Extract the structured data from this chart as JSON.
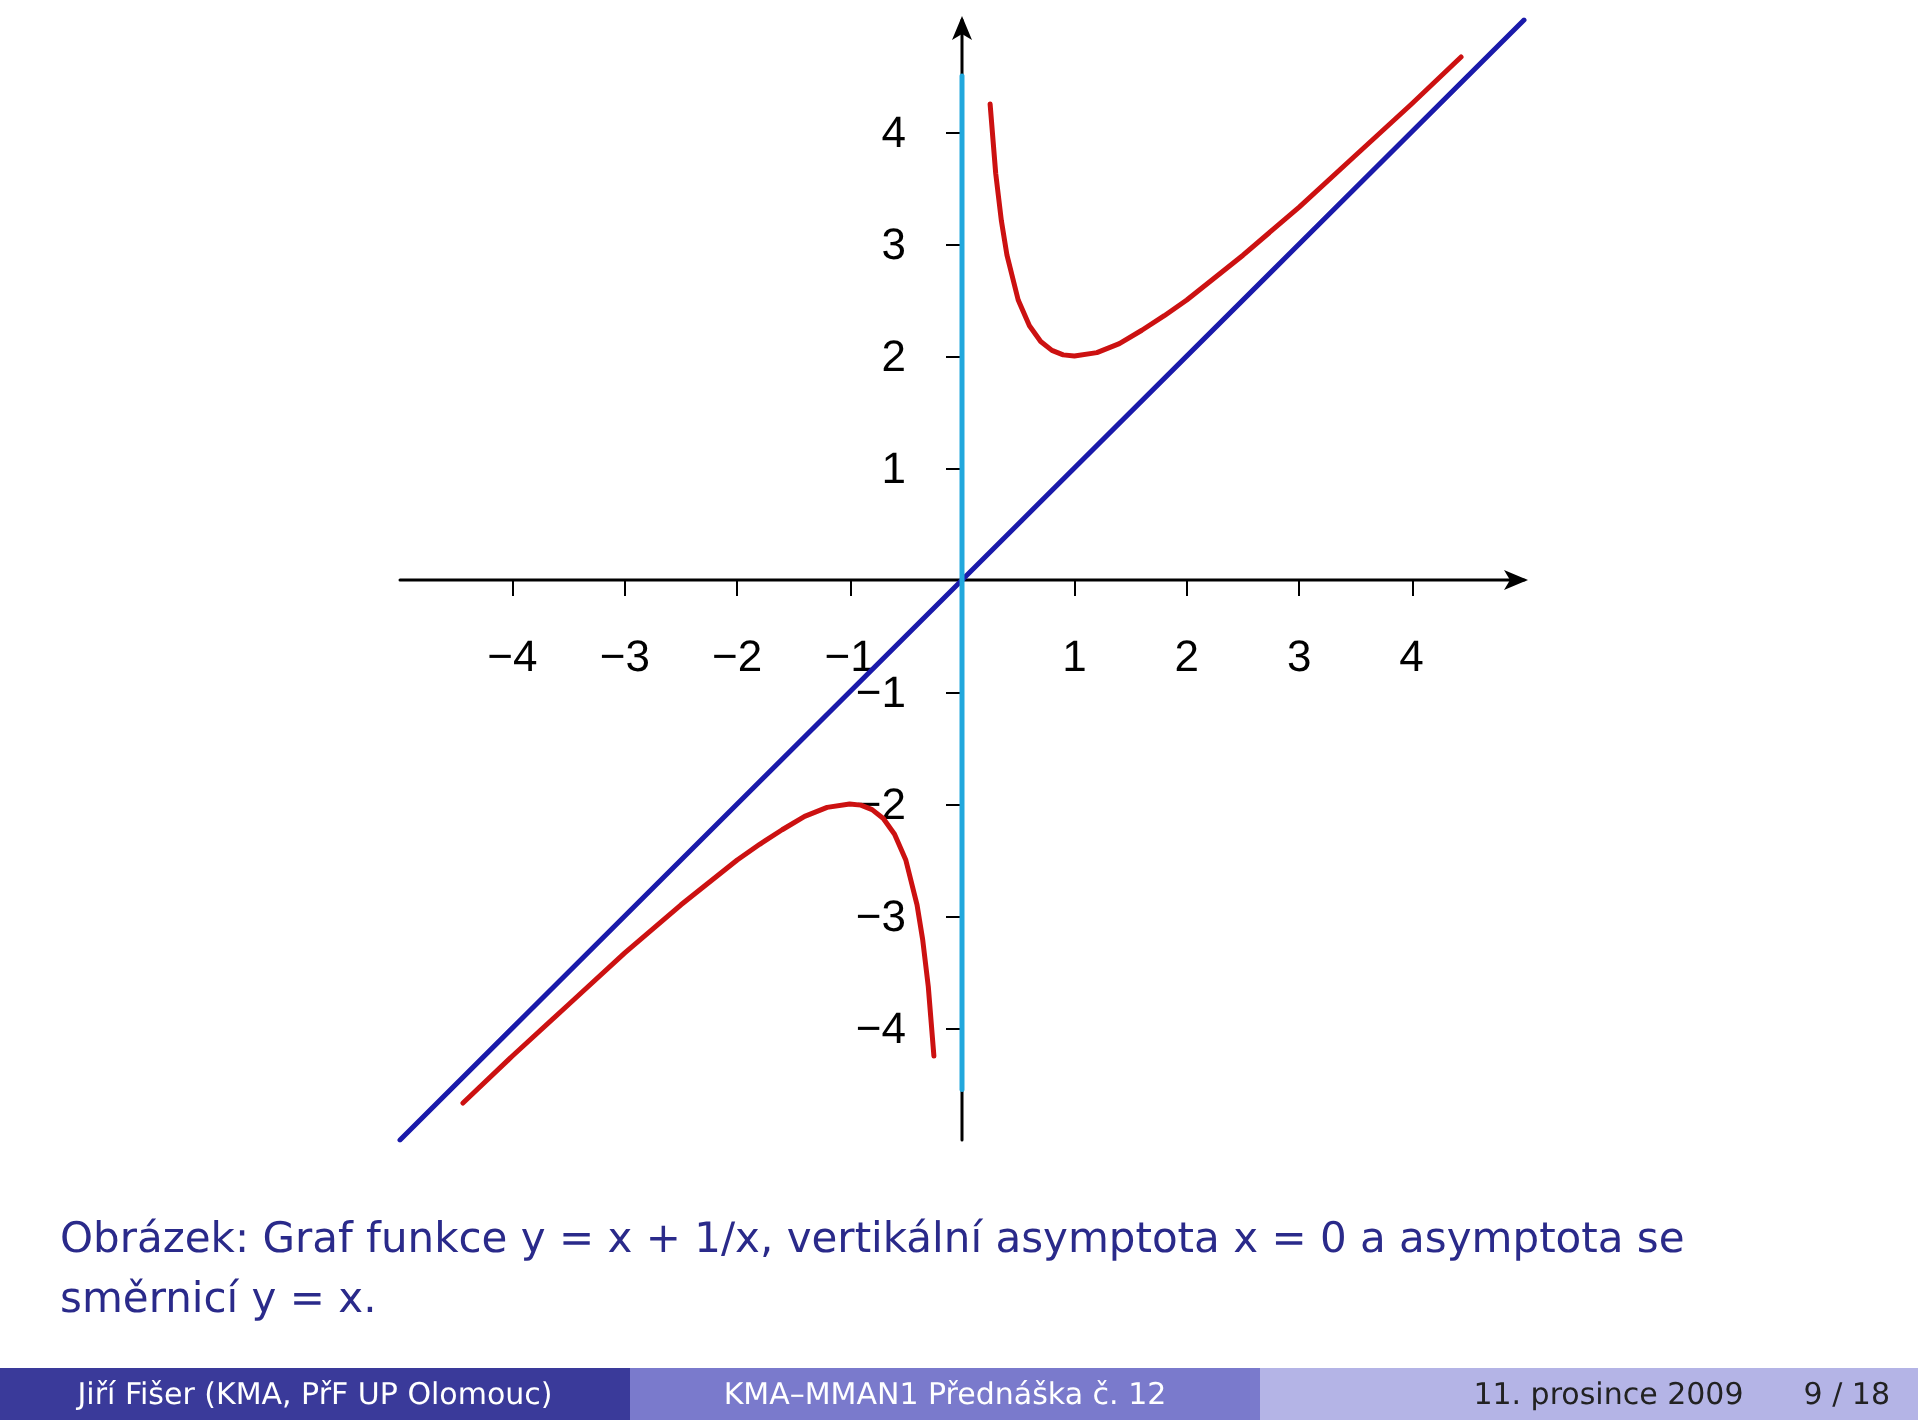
{
  "chart_data": {
    "type": "line",
    "xlim": [
      -5,
      5
    ],
    "ylim": [
      -5,
      5
    ],
    "xticks": [
      -4,
      -3,
      -2,
      -1,
      1,
      2,
      3,
      4
    ],
    "yticks": [
      -4,
      -3,
      -2,
      -1,
      1,
      2,
      3,
      4
    ],
    "grid": false,
    "marker": "none",
    "line_style": "solid",
    "series": [
      {
        "color": "#cc1111",
        "x": [
          0.25,
          0.3,
          0.35,
          0.4,
          0.5,
          0.6,
          0.7,
          0.8,
          0.9,
          1,
          1.2,
          1.4,
          1.6,
          1.8,
          2,
          2.5,
          3,
          3.5,
          4,
          4.44
        ],
        "values": [
          4.25,
          3.63,
          3.21,
          2.9,
          2.5,
          2.27,
          2.13,
          2.05,
          2.01,
          2,
          2.03,
          2.11,
          2.23,
          2.36,
          2.5,
          2.9,
          3.33,
          3.79,
          4.25,
          4.67
        ]
      },
      {
        "color": "#cc1111",
        "x": [
          -0.25,
          -0.3,
          -0.35,
          -0.4,
          -0.5,
          -0.6,
          -0.7,
          -0.8,
          -0.9,
          -1,
          -1.2,
          -1.4,
          -1.6,
          -1.8,
          -2,
          -2.5,
          -3,
          -3.5,
          -4,
          -4.44
        ],
        "values": [
          -4.25,
          -3.63,
          -3.21,
          -2.9,
          -2.5,
          -2.27,
          -2.13,
          -2.05,
          -2.01,
          -2,
          -2.03,
          -2.11,
          -2.23,
          -2.36,
          -2.5,
          -2.9,
          -3.33,
          -3.79,
          -4.25,
          -4.67
        ]
      },
      {
        "color": "#1a1aaa",
        "x": [
          -5,
          5
        ],
        "values": [
          -5,
          5
        ]
      },
      {
        "color": "#22a8dd",
        "x": [
          0,
          0
        ],
        "values": [
          -4.55,
          4.5
        ]
      }
    ],
    "annotations": [
      "Obrázek: Graf funkce y = x + 1/x, vertikální asymptota x = 0 a asymptota se směrnicí y = x.",
      "Jiří Fišer  (KMA, PřF UP Olomouc)",
      "KMA–MMAN1 Přednáška č. 12",
      "11. prosince 2009",
      "9 / 18"
    ]
  }
}
